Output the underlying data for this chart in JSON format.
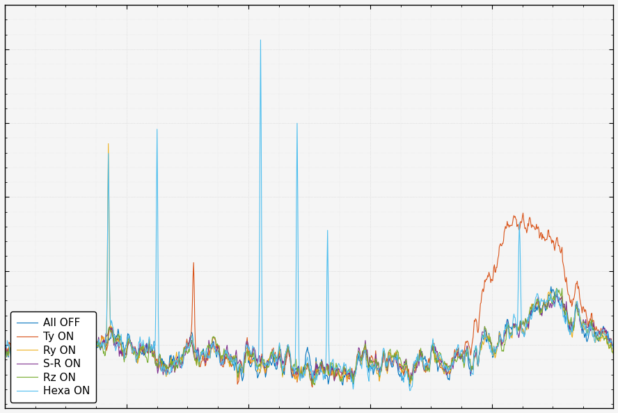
{
  "legend_labels": [
    "All OFF",
    "Ty ON",
    "Ry ON",
    "S-R ON",
    "Rz ON",
    "Hexa ON"
  ],
  "legend_colors": [
    "#0072BD",
    "#D95319",
    "#EDB120",
    "#7E2F8E",
    "#77AC30",
    "#4DBEEE"
  ],
  "background_color": "#f5f5f5",
  "grid_color": "#cccccc",
  "n_points": 1000,
  "figure_width": 8.88,
  "figure_height": 5.94,
  "dpi": 100,
  "legend_loc": "lower left",
  "legend_fontsize": 11
}
